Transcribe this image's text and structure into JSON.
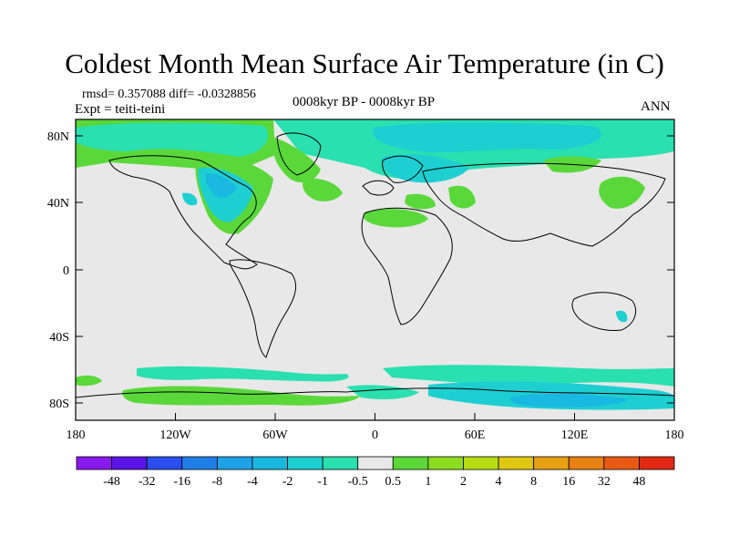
{
  "title": "Coldest Month Mean Surface Air Temperature (in C)",
  "stats": "rmsd= 0.357088 diff= -0.0328856",
  "experiment": "Expt = teiti-teini",
  "period": "0008kyr BP - 0008kyr BP",
  "season": "ANN",
  "lat_ticks": [
    "80N",
    "40N",
    "0",
    "40S",
    "80S"
  ],
  "lon_ticks": [
    "180",
    "120W",
    "60W",
    "0",
    "60E",
    "120E",
    "180"
  ],
  "colorbar": {
    "colors": [
      "#8a19f0",
      "#5a14e6",
      "#2a4ef0",
      "#1f7ee8",
      "#1ea1e6",
      "#19b8e0",
      "#1ecfd2",
      "#2adfb0",
      "#e8e8e8",
      "#5ad83a",
      "#8edc22",
      "#b8dc14",
      "#e0c812",
      "#e8a014",
      "#e88014",
      "#e85a14",
      "#e02a14"
    ],
    "labels": [
      "-48",
      "-32",
      "-16",
      "-8",
      "-4",
      "-2",
      "-1",
      "-0.5",
      "0.5",
      "1",
      "2",
      "4",
      "8",
      "16",
      "32",
      "48"
    ]
  }
}
